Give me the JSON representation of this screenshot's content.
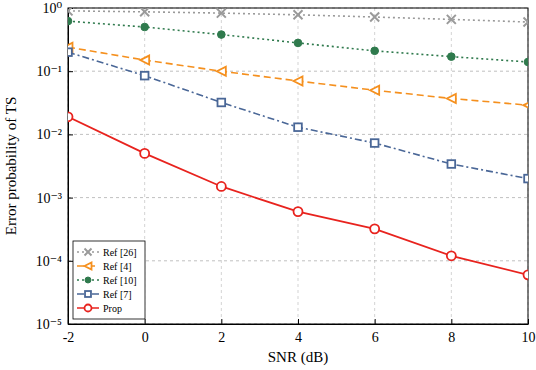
{
  "chart_data": {
    "type": "line",
    "x_label": "SNR (dB)",
    "y_label": "Error probability of TS",
    "x": [
      -2,
      0,
      2,
      4,
      6,
      8,
      10
    ],
    "xlim": [
      -2,
      10
    ],
    "xticks": [
      -2,
      0,
      2,
      4,
      6,
      8,
      10
    ],
    "ylim": [
      1e-05,
      1
    ],
    "yticks": [
      {
        "value": 1e-05,
        "label": "10⁻⁵"
      },
      {
        "value": 0.0001,
        "label": "10⁻⁴"
      },
      {
        "value": 0.001,
        "label": "10⁻³"
      },
      {
        "value": 0.01,
        "label": "10⁻²"
      },
      {
        "value": 0.1,
        "label": "10⁻¹"
      },
      {
        "value": 1,
        "label": "10⁰"
      }
    ],
    "log": "y",
    "grid": true,
    "legend": "lower left",
    "series": [
      {
        "name": "Ref [26]",
        "color": "#9a9a9a",
        "marker": "x",
        "line_style": "dotted",
        "values": [
          0.9,
          0.87,
          0.83,
          0.78,
          0.72,
          0.66,
          0.6
        ]
      },
      {
        "name": "Ref [4]",
        "color": "#f5901e",
        "marker": "triangle-left",
        "line_style": "dashed",
        "values": [
          0.24,
          0.15,
          0.1,
          0.07,
          0.05,
          0.037,
          0.029
        ]
      },
      {
        "name": "Ref [10]",
        "color": "#2f7a4d",
        "marker": "circle",
        "line_style": "dotted",
        "values": [
          0.62,
          0.5,
          0.38,
          0.28,
          0.21,
          0.17,
          0.14
        ]
      },
      {
        "name": "Ref [7]",
        "color": "#4a6797",
        "marker": "square",
        "line_style": "dashdot",
        "values": [
          0.2,
          0.085,
          0.032,
          0.013,
          0.0073,
          0.0034,
          0.002
        ]
      },
      {
        "name": "Prop",
        "color": "#e8231e",
        "marker": "circle-open",
        "line_style": "solid",
        "values": [
          0.019,
          0.005,
          0.0015,
          0.0006,
          0.00032,
          0.00012,
          6e-05
        ]
      }
    ]
  }
}
